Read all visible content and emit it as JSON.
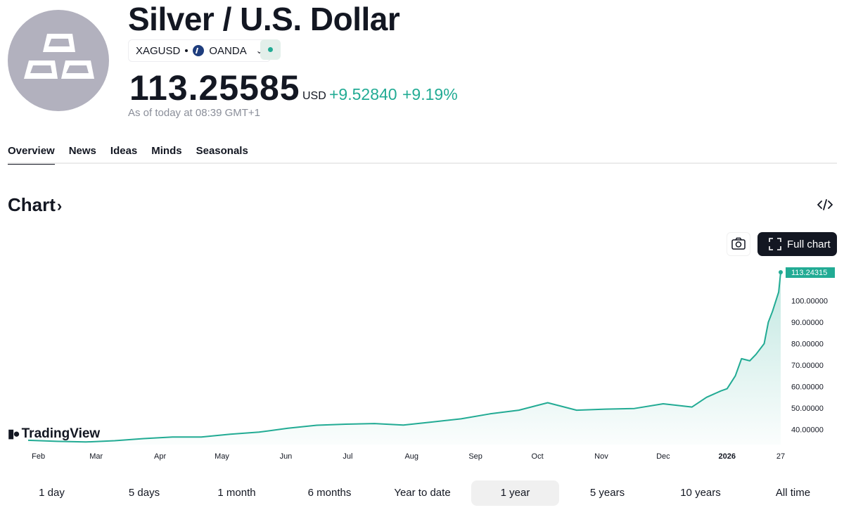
{
  "header": {
    "title": "Silver / U.S. Dollar",
    "symbol": "XAGUSD",
    "exchange": "OANDA",
    "price": "113.25585",
    "currency": "USD",
    "change": "+9.52840",
    "change_percent": "+9.19%",
    "as_of": "As of today at 08:39 GMT+1",
    "accent_color": "#22ab94"
  },
  "tabs": [
    {
      "label": "Overview",
      "active": true
    },
    {
      "label": "News"
    },
    {
      "label": "Ideas"
    },
    {
      "label": "Minds"
    },
    {
      "label": "Seasonals"
    }
  ],
  "chart_section": {
    "heading": "Chart",
    "full_chart_label": "Full chart",
    "brand": "TradingView"
  },
  "chart_data": {
    "type": "area",
    "series": [
      {
        "values": [
          35.0,
          34.5,
          34.2,
          34.8,
          35.8,
          36.5,
          36.5,
          37.8,
          38.8,
          40.6,
          42.0,
          42.5,
          42.8,
          42.1,
          43.5,
          45.0,
          47.3,
          49.0,
          52.5,
          49.0,
          49.5,
          49.8,
          52.0,
          50.5,
          55.0,
          58.0,
          59.0,
          65.0,
          73.0,
          72.0,
          75.0,
          80.0,
          90.0,
          95.0,
          104.0,
          113.24315
        ]
      }
    ],
    "x": [
      "2025-01-27",
      "2025-02-10",
      "2025-02-24",
      "2025-03-10",
      "2025-03-24",
      "2025-04-07",
      "2025-04-21",
      "2025-05-05",
      "2025-05-19",
      "2025-06-02",
      "2025-06-16",
      "2025-06-30",
      "2025-07-14",
      "2025-07-28",
      "2025-08-11",
      "2025-08-25",
      "2025-09-08",
      "2025-09-22",
      "2025-10-06",
      "2025-10-20",
      "2025-11-03",
      "2025-11-17",
      "2025-12-01",
      "2025-12-15",
      "2025-12-22",
      "2025-12-29",
      "2026-01-01",
      "2026-01-05",
      "2026-01-08",
      "2026-01-12",
      "2026-01-15",
      "2026-01-19",
      "2026-01-21",
      "2026-01-23",
      "2026-01-26",
      "2026-01-27"
    ],
    "x_ticks": [
      "Feb",
      "Mar",
      "Apr",
      "May",
      "Jun",
      "Jul",
      "Aug",
      "Sep",
      "Oct",
      "Nov",
      "Dec",
      "2026",
      "27"
    ],
    "y_ticks": [
      "40.00000",
      "50.00000",
      "60.00000",
      "70.00000",
      "80.00000",
      "90.00000",
      "100.00000"
    ],
    "last_value_label": "113.24315",
    "ylim": [
      33,
      113.24315
    ],
    "line_color": "#22ab94",
    "fill_color": "#22ab94",
    "grid": false
  },
  "periods": [
    {
      "label": "1 day"
    },
    {
      "label": "5 days"
    },
    {
      "label": "1 month"
    },
    {
      "label": "6 months"
    },
    {
      "label": "Year to date"
    },
    {
      "label": "1 year",
      "active": true
    },
    {
      "label": "5 years"
    },
    {
      "label": "10 years"
    },
    {
      "label": "All time"
    }
  ]
}
